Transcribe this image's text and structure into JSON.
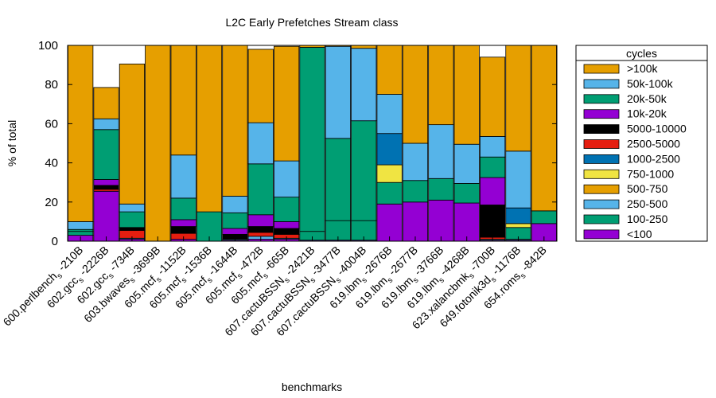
{
  "chart_data": {
    "type": "bar",
    "stacked": true,
    "normalized": true,
    "title": "L2C Early Prefetches Stream class",
    "xlabel": "benchmarks",
    "ylabel": "% of total",
    "ylim": [
      0,
      100
    ],
    "yticks": [
      "0",
      "20",
      "40",
      "60",
      "80",
      "100"
    ],
    "grid": false,
    "legend_title": "cycles",
    "legend_position": "right",
    "categories": [
      "600.perlbench_s-210B",
      "602.gcc_s-2226B",
      "602.gcc_s-734B",
      "603.bwaves_s-3699B",
      "605.mcf_s-1152B",
      "605.mcf_s-1536B",
      "605.mcf_s-1644B",
      "605.mcf_s-472B",
      "605.mcf_s-665B",
      "607.cactuBSSN_s-2421B",
      "607.cactuBSSN_s-3477B",
      "607.cactuBSSN_s-4004B",
      "619.lbm_s-2676B",
      "619.lbm_s-2677B",
      "619.lbm_s-3766B",
      "619.lbm_s-4268B",
      "623.xalancbmk_s-700B",
      "649.fotonik3d_s-1176B",
      "654.roms_s-842B"
    ],
    "category_labels": [
      {
        "prefix": "600.perlbench",
        "sub": "s",
        "suffix": "-210B"
      },
      {
        "prefix": "602.gcc",
        "sub": "s",
        "suffix": "-2226B"
      },
      {
        "prefix": "602.gcc",
        "sub": "s",
        "suffix": "-734B"
      },
      {
        "prefix": "603.bwaves",
        "sub": "s",
        "suffix": "-3699B"
      },
      {
        "prefix": "605.mcf",
        "sub": "s",
        "suffix": "-1152B"
      },
      {
        "prefix": "605.mcf",
        "sub": "s",
        "suffix": "-1536B"
      },
      {
        "prefix": "605.mcf",
        "sub": "s",
        "suffix": "-1644B"
      },
      {
        "prefix": "605.mcf",
        "sub": "s",
        "suffix": "-472B"
      },
      {
        "prefix": "605.mcf",
        "sub": "s",
        "suffix": "-665B"
      },
      {
        "prefix": "607.cactuBSSN",
        "sub": "s",
        "suffix": "-2421B"
      },
      {
        "prefix": "607.cactuBSSN",
        "sub": "s",
        "suffix": "-3477B"
      },
      {
        "prefix": "607.cactuBSSN",
        "sub": "s",
        "suffix": "-4004B"
      },
      {
        "prefix": "619.lbm",
        "sub": "s",
        "suffix": "-2676B"
      },
      {
        "prefix": "619.lbm",
        "sub": "s",
        "suffix": "-2677B"
      },
      {
        "prefix": "619.lbm",
        "sub": "s",
        "suffix": "-3766B"
      },
      {
        "prefix": "619.lbm",
        "sub": "s",
        "suffix": "-4268B"
      },
      {
        "prefix": "623.xalancbmk",
        "sub": "s",
        "suffix": "-700B"
      },
      {
        "prefix": "649.fotonik3d",
        "sub": "s",
        "suffix": "-1176B"
      },
      {
        "prefix": "654.roms",
        "sub": "s",
        "suffix": "-842B"
      }
    ],
    "series": [
      {
        "name": "<100",
        "color": "#9400d3",
        "values": [
          3,
          25.5,
          1,
          0,
          1,
          0,
          0.5,
          1,
          1,
          0.5,
          0.5,
          0.5,
          19,
          20,
          21,
          19.5,
          0.5,
          0.5,
          9
        ]
      },
      {
        "name": "100-250",
        "color": "#009e73",
        "values": [
          2,
          0,
          0,
          0,
          0,
          0,
          0,
          0,
          0,
          4.5,
          10,
          10,
          0,
          0,
          0,
          0,
          0,
          0,
          0
        ]
      },
      {
        "name": "250-500",
        "color": "#56b4e9",
        "values": [
          0,
          0,
          0.5,
          0,
          0,
          0,
          0.5,
          1.5,
          0.5,
          0,
          0,
          0,
          0,
          0,
          0,
          0,
          0.5,
          0.5,
          0
        ]
      },
      {
        "name": "500-750",
        "color": "#e69f00",
        "values": [
          0,
          0,
          0,
          0,
          0,
          0,
          0,
          0,
          0,
          0,
          0,
          0,
          0,
          0,
          0,
          0,
          0,
          0,
          0
        ]
      },
      {
        "name": "750-1000",
        "color": "#f0e442",
        "values": [
          0,
          0,
          0,
          0,
          0,
          0,
          0,
          0,
          0,
          0,
          0,
          0,
          0,
          0,
          0,
          0,
          0,
          0,
          0
        ]
      },
      {
        "name": "1000-2500",
        "color": "#0072b2",
        "values": [
          0,
          0,
          0,
          0,
          0,
          0,
          0,
          0,
          0,
          0,
          0,
          0,
          0,
          0,
          0,
          0,
          0,
          0,
          0
        ]
      },
      {
        "name": "2500-5000",
        "color": "#e51e10",
        "values": [
          0,
          0,
          0,
          0,
          3,
          0,
          0,
          2,
          2,
          0,
          0,
          0,
          0,
          0,
          0,
          0,
          1,
          0,
          0
        ]
      },
      {
        "name": "5000-10000",
        "color": "#000000",
        "values": [
          0,
          0,
          0,
          0,
          3.5,
          0,
          2.5,
          3,
          3,
          0,
          0,
          0,
          0,
          0,
          0,
          0,
          16.5,
          0,
          0
        ]
      },
      {
        "name": "10k-20k",
        "color": "#9400d3",
        "values": [
          0,
          0,
          0,
          0,
          3.5,
          0,
          3,
          6,
          3.5,
          0,
          0,
          0,
          0,
          0,
          0,
          0,
          14,
          0,
          0
        ]
      },
      {
        "name": "20k-50k",
        "color": "#009e73",
        "values": [
          1,
          25.5,
          8,
          0,
          11,
          15,
          8,
          26,
          12.5,
          94,
          42,
          51,
          11,
          11,
          11,
          10,
          10.5,
          6,
          6.5
        ]
      },
      {
        "name": "50k-100k",
        "color": "#56b4e9",
        "values": [
          4,
          5.5,
          4,
          0,
          22,
          0,
          8.5,
          21,
          18.5,
          0,
          47,
          37,
          20,
          19,
          27.5,
          20,
          10.5,
          29,
          0
        ]
      },
      {
        "name": ">100k",
        "color": "#e69f00",
        "values": [
          90,
          16,
          71.5,
          100,
          56,
          85,
          77,
          37.5,
          58.5,
          1,
          0.5,
          1.5,
          50,
          50,
          40.5,
          50.5,
          40.5,
          64,
          84.5
        ]
      }
    ],
    "extra_segments": [
      {
        "category": "602.gcc_s-2226B",
        "series": "10k-20k",
        "value": 3
      },
      {
        "category": "602.gcc_s-2226B",
        "series": "5000-10000",
        "value": 2
      },
      {
        "category": "602.gcc_s-2226B",
        "series": "2500-5000",
        "value": 1
      },
      {
        "category": "602.gcc_s-734B",
        "series": "2500-5000",
        "value": 4
      },
      {
        "category": "602.gcc_s-734B",
        "series": "5000-10000",
        "value": 1.5
      },
      {
        "category": "619.lbm_s-2676B",
        "series": "750-1000",
        "value": 9
      },
      {
        "category": "619.lbm_s-2676B",
        "series": "1000-2500",
        "value": 16
      },
      {
        "category": "649.fotonik3d_s-1176B",
        "series": "750-1000",
        "value": 2
      },
      {
        "category": "649.fotonik3d_s-1176B",
        "series": "1000-2500",
        "value": 8
      }
    ],
    "legend_order": [
      ">100k",
      "50k-100k",
      "20k-50k",
      "10k-20k",
      "5000-10000",
      "2500-5000",
      "1000-2500",
      "750-1000",
      "500-750",
      "250-500",
      "100-250",
      "<100"
    ]
  }
}
